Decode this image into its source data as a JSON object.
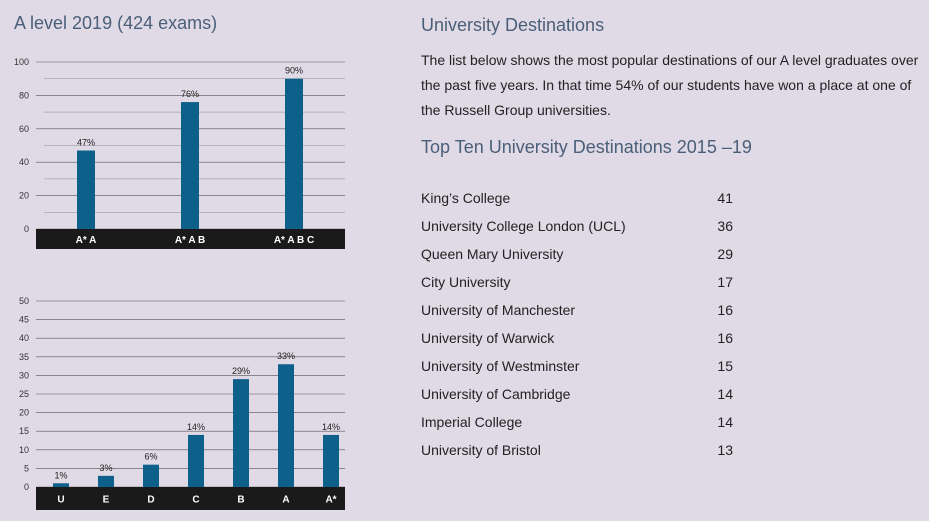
{
  "left": {
    "title": "A level 2019 (424 exams)"
  },
  "chart_data": [
    {
      "type": "bar",
      "categories": [
        "A* A",
        "A* A B",
        "A* A B C"
      ],
      "values": [
        47,
        76,
        90
      ],
      "data_labels": [
        "47%",
        "76%",
        "90%"
      ],
      "ylim": [
        0,
        100
      ],
      "yticks": [
        0,
        20,
        40,
        60,
        80,
        100
      ],
      "color": "#0d6089"
    },
    {
      "type": "bar",
      "categories": [
        "U",
        "E",
        "D",
        "C",
        "B",
        "A",
        "A*"
      ],
      "values": [
        1,
        3,
        6,
        14,
        29,
        33,
        14
      ],
      "data_labels": [
        "1%",
        "3%",
        "6%",
        "14%",
        "29%",
        "33%",
        "14%"
      ],
      "ylim": [
        0,
        50
      ],
      "yticks": [
        0,
        5,
        10,
        15,
        20,
        25,
        30,
        35,
        40,
        45,
        50
      ],
      "color": "#0d6089"
    }
  ],
  "right": {
    "destinations_title": "University Destinations",
    "intro": "The list below shows the most popular destinations of our A level graduates over the past five years. In that time 54% of our students have won a place at one of the Russell Group universities.",
    "top_title": "Top Ten University Destinations 2015 –19",
    "destinations": [
      {
        "name": "King’s College",
        "count": "41"
      },
      {
        "name": "University College London (UCL)",
        "count": "36"
      },
      {
        "name": "Queen Mary University",
        "count": "29"
      },
      {
        "name": "City University",
        "count": "17"
      },
      {
        "name": "University of Manchester",
        "count": "16"
      },
      {
        "name": "University of Warwick",
        "count": "16"
      },
      {
        "name": "University of Westminster",
        "count": "15"
      },
      {
        "name": "University of Cambridge",
        "count": "14"
      },
      {
        "name": "Imperial College",
        "count": "14"
      },
      {
        "name": "University of Bristol",
        "count": "13"
      }
    ]
  }
}
